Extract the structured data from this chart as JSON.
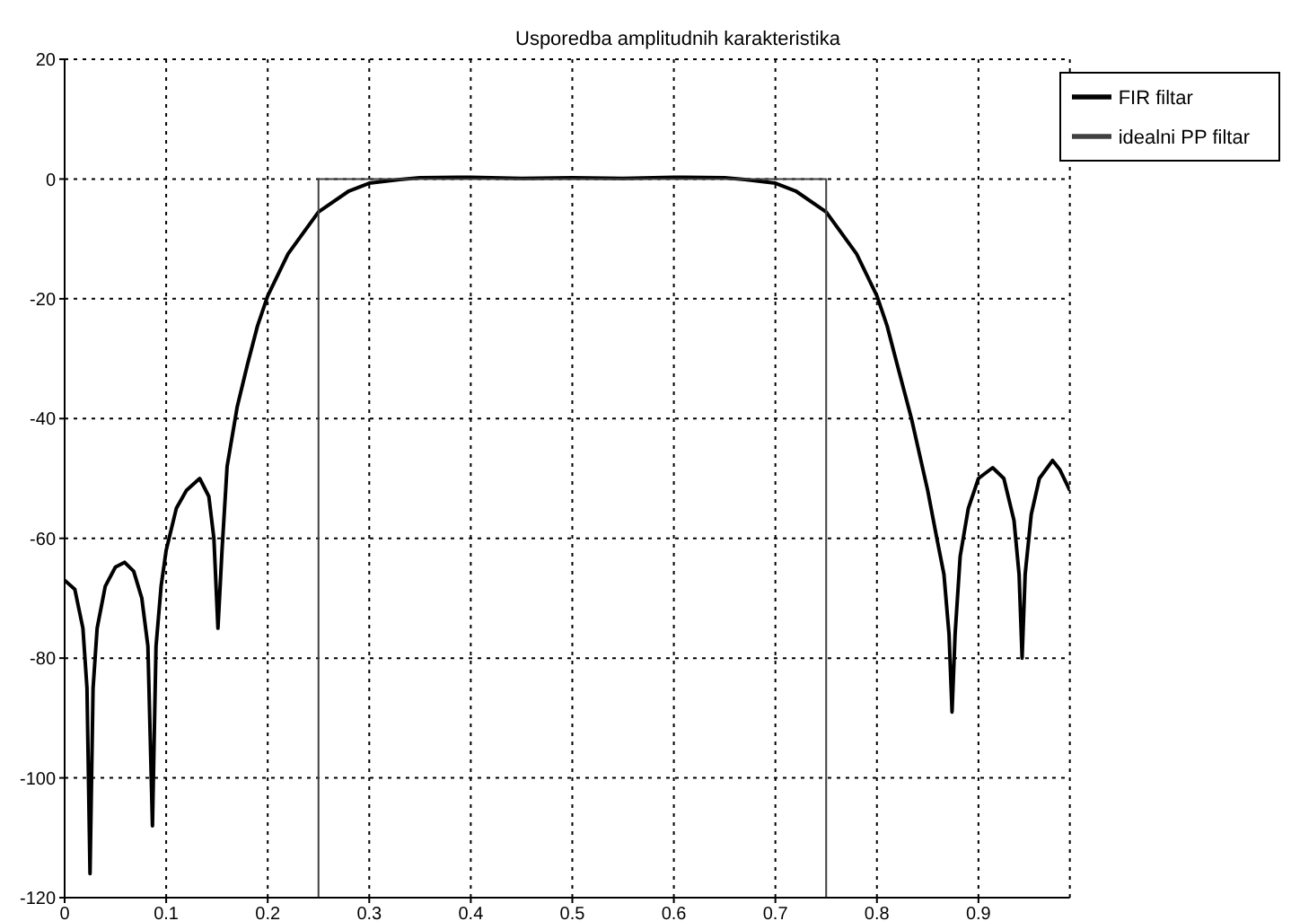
{
  "chart_data": {
    "type": "line",
    "title": "Usporedba amplitudnih karakteristika",
    "xlim": [
      0,
      0.99
    ],
    "xticks": [
      0,
      0.1,
      0.2,
      0.3,
      0.4,
      0.5,
      0.6,
      0.7,
      0.8,
      0.9
    ],
    "ylim": [
      -120,
      20
    ],
    "yticks": [
      -120,
      -100,
      -80,
      -60,
      -40,
      -20,
      0,
      20
    ],
    "grid": true,
    "legend": "top right",
    "marker": "none",
    "line_style": "solid",
    "series": [
      {
        "name": "FIR filtar",
        "color": "#000000",
        "x": [
          0,
          0.01,
          0.018,
          0.022,
          0.025,
          0.028,
          0.032,
          0.04,
          0.05,
          0.059,
          0.068,
          0.076,
          0.082,
          0.0865,
          0.09,
          0.095,
          0.1,
          0.11,
          0.12,
          0.133,
          0.142,
          0.147,
          0.151,
          0.155,
          0.16,
          0.17,
          0.18,
          0.19,
          0.2,
          0.22,
          0.25,
          0.28,
          0.3,
          0.33,
          0.35,
          0.4,
          0.45,
          0.5,
          0.55,
          0.6,
          0.65,
          0.67,
          0.7,
          0.72,
          0.75,
          0.78,
          0.8,
          0.81,
          0.82,
          0.834,
          0.85,
          0.859,
          0.866,
          0.871,
          0.874,
          0.877,
          0.882,
          0.89,
          0.9,
          0.914,
          0.925,
          0.935,
          0.94,
          0.943,
          0.946,
          0.952,
          0.96,
          0.973,
          0.98,
          0.99
        ],
        "values": [
          -67,
          -68.5,
          -75,
          -85,
          -116,
          -85,
          -75,
          -68,
          -64.8,
          -64,
          -65.5,
          -70,
          -78,
          -108,
          -78,
          -68,
          -62,
          -55,
          -52,
          -50,
          -53,
          -60,
          -75,
          -62,
          -48,
          -38,
          -31,
          -24.5,
          -19.5,
          -12.5,
          -5.5,
          -2,
          -0.7,
          -0.1,
          0.2,
          0.3,
          0.1,
          0.2,
          0.1,
          0.3,
          0.2,
          -0.1,
          -0.7,
          -2,
          -5.5,
          -12.5,
          -19.5,
          -24.5,
          -31,
          -40,
          -52,
          -60,
          -66,
          -76,
          -89,
          -76,
          -63,
          -55,
          -50,
          -48.2,
          -50,
          -57,
          -66,
          -80,
          -66,
          -56,
          -50,
          -47,
          -48.5,
          -52
        ]
      },
      {
        "name": "idealni PP filtar",
        "color": "#404040",
        "x": [
          0,
          0.25,
          0.25,
          0.75,
          0.75,
          0.99
        ],
        "values": [
          -120,
          -120,
          0,
          0,
          -120,
          -120
        ]
      }
    ]
  }
}
